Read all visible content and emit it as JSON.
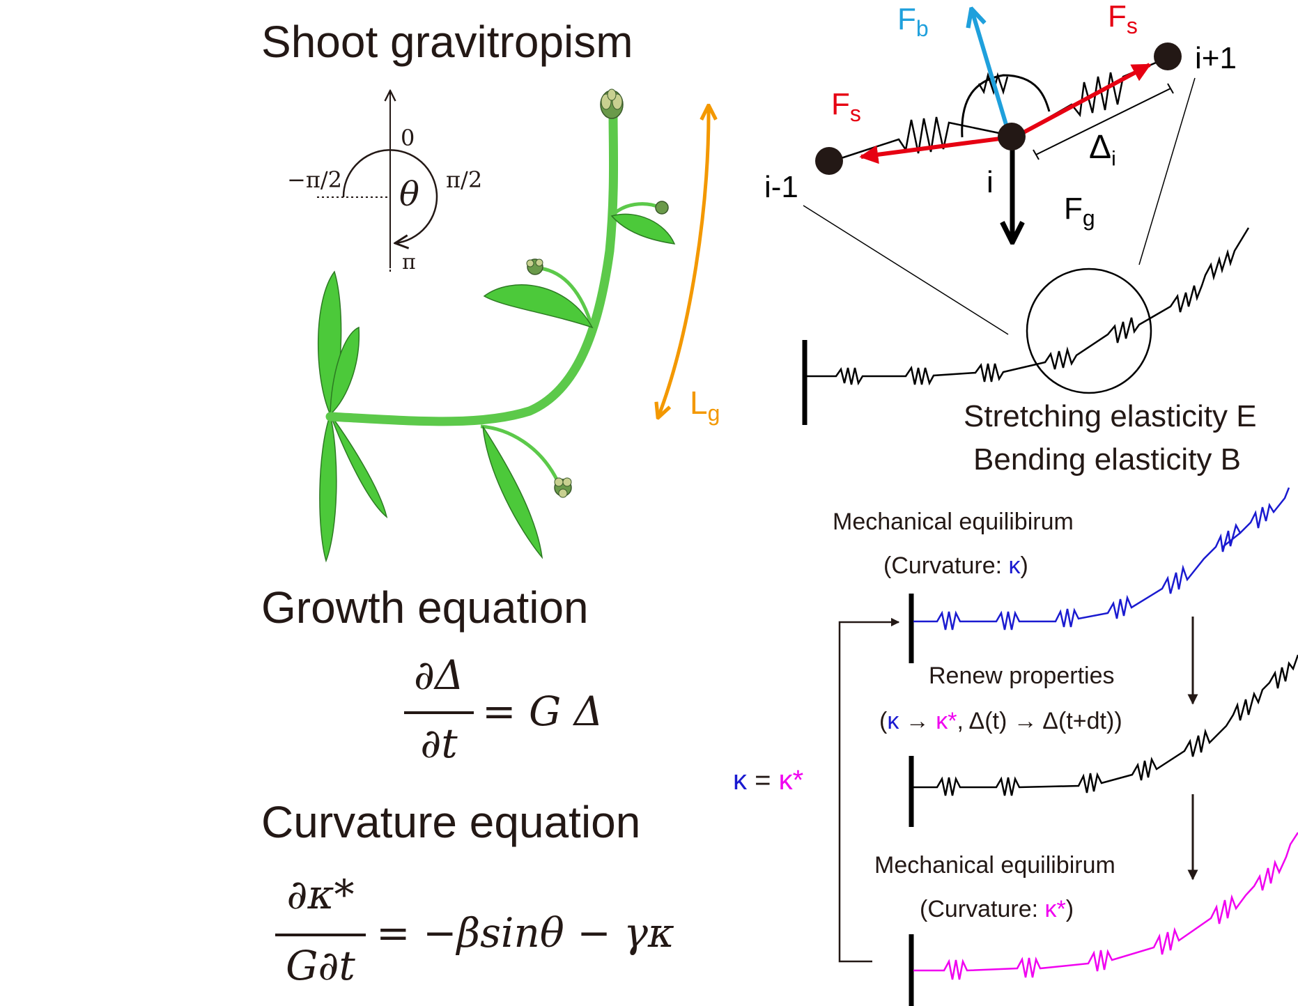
{
  "colors": {
    "ink": "#231815",
    "plant_fill": "#4cc93a",
    "plant_stroke": "#2c7a22",
    "stem": "#5cc94a",
    "flower": "#6a9a4a",
    "orange": "#f39800",
    "red": "#e60012",
    "cyan": "#1fa0dc",
    "blue": "#1a1ad0",
    "magenta": "#f000f0"
  },
  "shoot": {
    "title": "Shoot gravitropism",
    "angle_zero": "0",
    "angle_neg_half_pi": "−π/2",
    "angle_half_pi": "π/2",
    "angle_pi": "π",
    "theta": "θ",
    "length_label": "L",
    "length_sub": "g"
  },
  "spring_model": {
    "force_bending": "F",
    "force_bending_sub": "b",
    "force_stretch_left": "F",
    "force_stretch_right": "F",
    "force_stretch_sub": "s",
    "force_gravity": "F",
    "force_gravity_sub": "g",
    "node_prev": "i-1",
    "node_current": "i",
    "node_next": "i+1",
    "segment_length": "Δ",
    "segment_length_sub": "i",
    "stretching": "Stretching elasticity E",
    "bending": "Bending elasticity B"
  },
  "growth": {
    "title": "Growth equation",
    "numerator": "∂Δ",
    "denominator": "∂t",
    "rhs": "= G Δ"
  },
  "curvature": {
    "title": "Curvature equation",
    "numerator": "∂κ*",
    "denominator": "G∂t",
    "rhs": "= −βsinθ − γκ"
  },
  "cycle": {
    "equilibrium_1": "Mechanical equilibirum",
    "curvature_1_prefix": "(Curvature: ",
    "curvature_1_symbol": "κ",
    "curvature_1_suffix": ")",
    "renew": "Renew properties",
    "renew_open": "(",
    "renew_kappa": "κ",
    "renew_arrow": " → ",
    "renew_kappa_star": "κ*",
    "renew_rest": ",  Δ(t) → Δ(t+dt))",
    "equilibrium_2": "Mechanical equilibirum",
    "curvature_2_prefix": "(Curvature: ",
    "curvature_2_symbol": "κ*",
    "curvature_2_suffix": ")",
    "feedback_kappa": "κ",
    "feedback_eq": " = ",
    "feedback_kappa_star": "κ*"
  }
}
